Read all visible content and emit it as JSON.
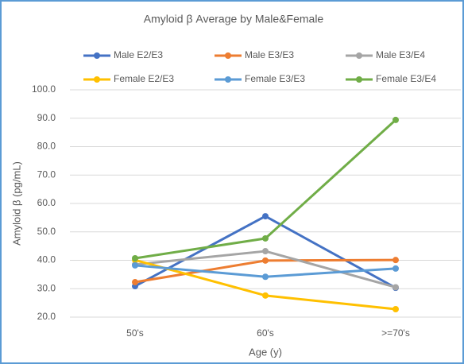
{
  "chart_data": {
    "type": "line",
    "title": "Amyloid β Average by Male&Female",
    "x_label": "Age (y)",
    "y_label": "Amyloid β (pg/mL)",
    "categories": [
      "50's",
      "60's",
      ">=70's"
    ],
    "series": [
      {
        "name": "Male E2/E3",
        "color": "#4472c4",
        "values": [
          30.9,
          55.5,
          30.3
        ]
      },
      {
        "name": "Male E3/E3",
        "color": "#ed7d31",
        "values": [
          32.3,
          39.9,
          40.1
        ]
      },
      {
        "name": "Male E3/E4",
        "color": "#a5a5a5",
        "values": [
          38.5,
          43.2,
          30.5
        ]
      },
      {
        "name": "Female E2/E3",
        "color": "#ffc000",
        "values": [
          40.1,
          27.6,
          22.8
        ]
      },
      {
        "name": "Female E3/E3",
        "color": "#5b9bd5",
        "values": [
          38.2,
          34.2,
          37.1
        ]
      },
      {
        "name": "Female E3/E4",
        "color": "#70ad47",
        "values": [
          40.7,
          47.7,
          89.4
        ]
      }
    ],
    "ylim": [
      20,
      100
    ],
    "yticks": [
      {
        "value": 20,
        "label": "20.0"
      },
      {
        "value": 30,
        "label": "30.0"
      },
      {
        "value": 40,
        "label": "40.0"
      },
      {
        "value": 50,
        "label": "50.0"
      },
      {
        "value": 60,
        "label": "60.0"
      },
      {
        "value": 70,
        "label": "70.0"
      },
      {
        "value": 80,
        "label": "80.0"
      },
      {
        "value": 90,
        "label": "90.0"
      },
      {
        "value": 100,
        "label": "100.0"
      }
    ],
    "grid": true
  }
}
